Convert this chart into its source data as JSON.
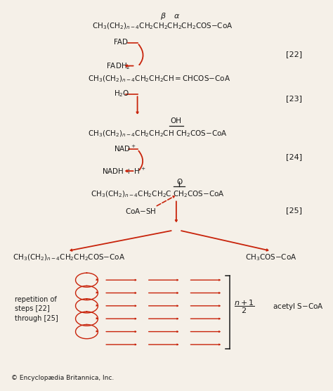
{
  "bg_color": "#f5f0e8",
  "red_color": "#c8230a",
  "dark_color": "#1a1a1a",
  "fig_width": 4.74,
  "fig_height": 5.56,
  "dpi": 100,
  "copyright": "© Encyclopædia Britannica, Inc.",
  "xlim": [
    0,
    10
  ],
  "ylim": [
    0,
    12
  ]
}
